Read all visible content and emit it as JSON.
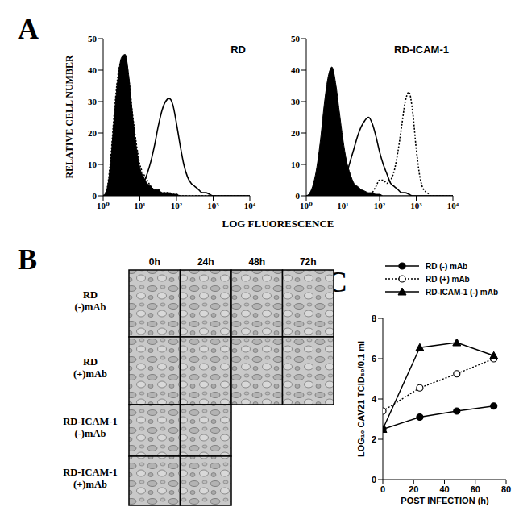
{
  "chart_data": [
    {
      "type": "line",
      "title": "RD",
      "log": "x",
      "x": [
        1,
        1.26,
        1.58,
        2,
        2.51,
        3.16,
        3.98,
        5.01,
        6.31,
        7.94,
        10,
        12.6,
        15.8,
        20,
        25.1,
        31.6,
        39.8,
        50.1,
        63.1,
        79.4,
        100,
        126,
        158,
        200,
        251,
        316,
        398,
        501,
        631,
        794,
        1000,
        1260,
        1580,
        2000,
        2510,
        3160,
        3980,
        5010,
        6310,
        7940,
        10000
      ],
      "xlim": [
        1,
        10000
      ],
      "xticks": [
        {
          "value": 1,
          "label": "10⁰"
        },
        {
          "value": 10,
          "label": "10¹"
        },
        {
          "value": 100,
          "label": "10²"
        },
        {
          "value": 1000,
          "label": "10³"
        },
        {
          "value": 10000,
          "label": "10⁴"
        }
      ],
      "ylim": [
        0,
        50
      ],
      "yticks": [
        0,
        10,
        20,
        30,
        40,
        50
      ],
      "series": [
        {
          "type": "area",
          "color": "#000000",
          "line_style": "solid",
          "values": [
            0,
            2,
            10,
            25,
            37,
            44,
            45,
            38,
            26,
            16,
            9,
            6,
            4,
            3,
            2,
            2,
            1,
            1,
            1,
            0.5,
            0.5,
            0,
            0,
            0,
            0,
            0,
            0,
            0,
            0,
            0,
            0,
            0,
            0,
            0,
            0,
            0,
            0,
            0,
            0,
            0,
            0
          ]
        },
        {
          "type": "line",
          "color": "#000000",
          "line_style": "dotted",
          "values": [
            0,
            2,
            11,
            26,
            38,
            43,
            44,
            37,
            26,
            17,
            10,
            7,
            5,
            3,
            2,
            2,
            1,
            1,
            1,
            0.5,
            0.5,
            0,
            0,
            0,
            0,
            0,
            0,
            0,
            0,
            0,
            0,
            0,
            0,
            0,
            0,
            0,
            0,
            0,
            0,
            0,
            0
          ]
        },
        {
          "type": "line",
          "color": "#000000",
          "line_style": "solid",
          "values": [
            0,
            0,
            0,
            0,
            0,
            0,
            0,
            0,
            0,
            1,
            2,
            4,
            7,
            11,
            16,
            22,
            27,
            30,
            31,
            29,
            23,
            16,
            10,
            6,
            4,
            3,
            2,
            1,
            1,
            0.5,
            0,
            0,
            0,
            0,
            0,
            0,
            0,
            0,
            0,
            0,
            0
          ]
        }
      ]
    },
    {
      "type": "line",
      "title": "RD-ICAM-1",
      "log": "x",
      "x": [
        1,
        1.26,
        1.58,
        2,
        2.51,
        3.16,
        3.98,
        5.01,
        6.31,
        7.94,
        10,
        12.6,
        15.8,
        20,
        25.1,
        31.6,
        39.8,
        50.1,
        63.1,
        79.4,
        100,
        126,
        158,
        200,
        251,
        316,
        398,
        501,
        631,
        794,
        1000,
        1260,
        1580,
        2000,
        2510,
        3160,
        3980,
        5010,
        6310,
        7940,
        10000
      ],
      "xlim": [
        1,
        10000
      ],
      "xticks": [
        {
          "value": 1,
          "label": "10⁰"
        },
        {
          "value": 10,
          "label": "10¹"
        },
        {
          "value": 100,
          "label": "10²"
        },
        {
          "value": 1000,
          "label": "10³"
        },
        {
          "value": 10000,
          "label": "10⁴"
        }
      ],
      "ylim": [
        0,
        50
      ],
      "yticks": [
        0,
        10,
        20,
        30,
        40,
        50
      ],
      "series": [
        {
          "type": "area",
          "color": "#000000",
          "line_style": "solid",
          "values": [
            0,
            1,
            4,
            10,
            19,
            30,
            38,
            41,
            36,
            27,
            18,
            11,
            7,
            4,
            3,
            2,
            1.5,
            1,
            1,
            0.5,
            0.5,
            0,
            0,
            0,
            0,
            0,
            0,
            0,
            0,
            0,
            0,
            0,
            0,
            0,
            0,
            0,
            0,
            0,
            0,
            0,
            0
          ]
        },
        {
          "type": "line",
          "color": "#000000",
          "line_style": "dotted",
          "values": [
            0,
            0,
            0,
            0,
            0,
            0,
            0,
            0,
            0,
            0,
            0,
            0,
            0,
            0,
            0,
            0,
            0,
            0,
            1,
            3,
            5,
            5,
            4,
            5,
            8,
            14,
            22,
            30,
            33,
            27,
            15,
            6,
            2,
            1,
            0,
            0,
            0,
            0,
            0,
            0,
            0
          ]
        },
        {
          "type": "line",
          "color": "#000000",
          "line_style": "solid",
          "values": [
            0,
            0,
            0,
            0,
            0,
            0,
            0,
            0,
            1,
            2,
            4,
            7,
            11,
            15,
            19,
            22,
            24,
            25,
            23,
            19,
            14,
            10,
            7,
            4,
            3,
            2,
            1,
            1,
            0.5,
            0,
            0,
            0,
            0,
            0,
            0,
            0,
            0,
            0,
            0,
            0,
            0
          ]
        }
      ]
    },
    {
      "type": "line",
      "x_label": "POST INFECTION (h)",
      "y_label": "LOG₁₀ CAV21 TCID₅₀/0.1 ml",
      "legend": "upper right",
      "x": [
        0,
        24,
        48,
        72
      ],
      "xlim": [
        0,
        80
      ],
      "xticks": [
        0,
        20,
        40,
        60,
        80
      ],
      "ylim": [
        0,
        8
      ],
      "yticks": [
        0,
        2,
        4,
        6,
        8
      ],
      "series": [
        {
          "name": "RD (-) mAb",
          "color": "#000000",
          "marker": "circle",
          "line_style": "solid",
          "values": [
            2.5,
            3.1,
            3.4,
            3.65
          ]
        },
        {
          "name": "RD (+) mAb",
          "color": "#000000",
          "marker": "open_circle",
          "line_style": "dotted",
          "values": [
            3.4,
            4.55,
            5.25,
            6.0
          ]
        },
        {
          "name": "RD-ICAM-1 (-) mAb",
          "color": "#000000",
          "marker": "triangle",
          "line_style": "solid",
          "values": [
            2.5,
            6.55,
            6.8,
            6.15
          ]
        }
      ]
    }
  ],
  "figure_panels": [
    {
      "label": "A",
      "x_label": "LOG FLUORESCENCE",
      "y_label": "RELATIVE CELL NUMBER"
    },
    {
      "label": "B",
      "columns": [
        "0h",
        "24h",
        "48h",
        "72h"
      ],
      "rows": [
        {
          "label": [
            "RD",
            "(-)mAb"
          ],
          "frames": 4
        },
        {
          "label": [
            "RD",
            "(+)mAb"
          ],
          "frames": 4
        },
        {
          "label": [
            "RD-ICAM-1",
            "(-)mAb"
          ],
          "frames": 2
        },
        {
          "label": [
            "RD-ICAM-1",
            "(+)mAb"
          ],
          "frames": 2
        }
      ]
    },
    {
      "label": "C"
    }
  ]
}
